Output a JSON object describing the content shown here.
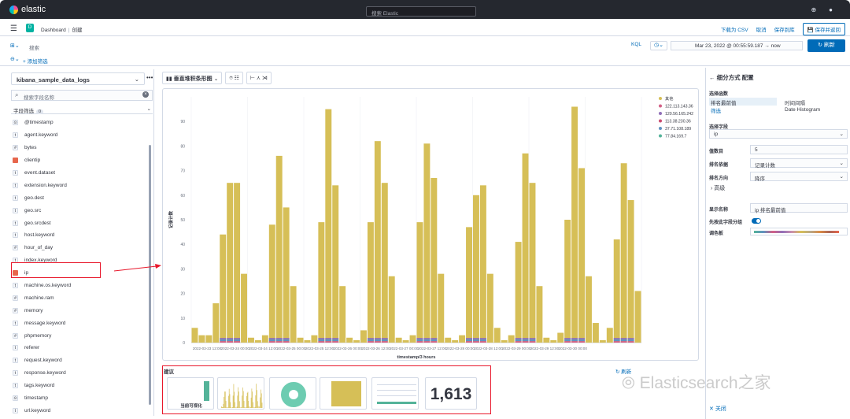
{
  "header": {
    "brand": "elastic",
    "search_placeholder": "搜索 Elastic"
  },
  "nav": {
    "space": "D",
    "breadcrumb": [
      "Dashboard",
      "创建"
    ],
    "actions": [
      "下载为 CSV",
      "取消",
      "保存到库"
    ],
    "save_return": "保存并返回"
  },
  "query": {
    "label": "搜索",
    "kql": "KQL",
    "date_start": "Mar 23, 2022 @ 00:55:59.187",
    "date_arrow": "→",
    "date_end": "now",
    "refresh": "刷新"
  },
  "filters": {
    "add": "+ 添加筛选"
  },
  "sidebar": {
    "index": "kibana_sample_data_logs",
    "search_placeholder": "搜索字段名称",
    "field_type": "字段筛选",
    "field_type_count": "0",
    "fields": [
      [
        "⊙",
        "@timestamp"
      ],
      [
        "t",
        "agent.keyword"
      ],
      [
        "#",
        "bytes"
      ],
      [
        "ip",
        "clientip"
      ],
      [
        "t",
        "event.dataset"
      ],
      [
        "t",
        "extension.keyword"
      ],
      [
        "t",
        "geo.dest"
      ],
      [
        "t",
        "geo.src"
      ],
      [
        "t",
        "geo.srcdest"
      ],
      [
        "t",
        "host.keyword"
      ],
      [
        "#",
        "hour_of_day"
      ],
      [
        "t",
        "index.keyword"
      ],
      [
        "ip",
        "ip"
      ],
      [
        "t",
        "machine.os.keyword"
      ],
      [
        "#",
        "machine.ram"
      ],
      [
        "#",
        "memory"
      ],
      [
        "t",
        "message.keyword"
      ],
      [
        "#",
        "phpmemory"
      ],
      [
        "t",
        "referer"
      ],
      [
        "t",
        "request.keyword"
      ],
      [
        "t",
        "response.keyword"
      ],
      [
        "t",
        "tags.keyword"
      ],
      [
        "⊙",
        "timestamp"
      ],
      [
        "t",
        "url.keyword"
      ]
    ]
  },
  "toolbar": {
    "chart_type": "垂直堆积条形图"
  },
  "chart_data": {
    "type": "bar",
    "ylabel": "记录计数",
    "xlabel": "timestamp/3 hours",
    "ylim": [
      0,
      100
    ],
    "yticks": [
      0,
      10,
      20,
      30,
      40,
      50,
      60,
      70,
      80,
      90
    ],
    "xticks": [
      "2022-03-23 12:00",
      "2022-03-24 00:00",
      "2022-03-24 12:00",
      "2022-03-25 00:00",
      "2022-03-25 12:00",
      "2022-03-26 00:00",
      "2022-03-26 12:00",
      "2022-03-27 00:00",
      "2022-03-27 12:00",
      "2022-03-28 00:00",
      "2022-03-28 12:00",
      "2022-03-29 00:00",
      "2022-03-29 12:00",
      "2022-03-30 00:00"
    ],
    "legend": [
      "其他",
      "122.113.143.36",
      "120.56.165.242",
      "113.38.230.36",
      "37.71.108.189",
      "77.84.169.7"
    ],
    "colors": [
      "#d6bf57",
      "#d36086",
      "#9170b8",
      "#ca4b6f",
      "#6092c0",
      "#54b399"
    ],
    "values": [
      6,
      3,
      3,
      16,
      44,
      65,
      65,
      28,
      2,
      1,
      3,
      48,
      76,
      55,
      23,
      2,
      1,
      3,
      49,
      95,
      64,
      23,
      2,
      1,
      5,
      49,
      82,
      65,
      27,
      2,
      1,
      3,
      49,
      81,
      67,
      28,
      2,
      1,
      3,
      47,
      60,
      64,
      28,
      6,
      1,
      3,
      41,
      77,
      65,
      23,
      2,
      1,
      4,
      50,
      96,
      71,
      27,
      8,
      1,
      6,
      42,
      73,
      58,
      21
    ]
  },
  "suggestions": {
    "title": "建议",
    "refresh": "刷新",
    "current_label": "当前可视化",
    "metric": "1,613"
  },
  "panel": {
    "back": "←",
    "title": "细分方式 配置",
    "fn_label": "选择函数",
    "fn_active": "排名最前值",
    "fn_other": "时间间隔",
    "fn_active_sub": "筛选",
    "fn_other_sub": "Date Histogram",
    "field_label": "选择字段",
    "field_value": "ip",
    "count_label": "值数目",
    "count_value": "5",
    "rank_label": "排名依据",
    "rank_value": "记录计数",
    "order_label": "排名方向",
    "order_value": "降序",
    "advanced": "高级",
    "display_label": "显示名称",
    "display_value": "ip 排名最前值",
    "group_label": "先按此字段分组",
    "palette_label": "调色板",
    "close": "关闭"
  },
  "watermark": "Elasticsearch之家"
}
